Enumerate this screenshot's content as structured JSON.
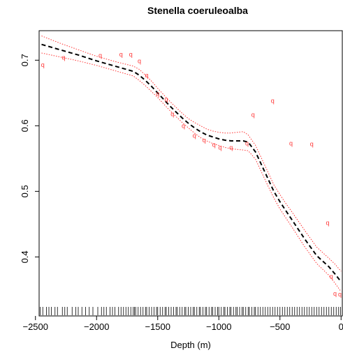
{
  "chart_data": {
    "type": "line",
    "title": "Stenella coeruleoalba",
    "xlabel": "Depth (m)",
    "ylabel": "",
    "xlim": [
      -2470,
      10
    ],
    "ylim": [
      0.31,
      0.745
    ],
    "x_ticks": [
      -2500,
      -2000,
      -1500,
      -1000,
      -500,
      0
    ],
    "x_tick_labels": [
      "−2500",
      "−2000",
      "−1500",
      "−1000",
      "−500",
      "0"
    ],
    "y_ticks": [
      0.4,
      0.5,
      0.6,
      0.7
    ],
    "y_tick_labels": [
      "0.4",
      "0.5",
      "0.6",
      "0.7"
    ],
    "grid": false,
    "legend": "none",
    "point_glyph": "q",
    "colors": {
      "fit": "#000000",
      "band": "#ff3333",
      "points": "#ff3333",
      "rug": "#000000",
      "axes": "#000000"
    },
    "series": [
      {
        "role": "fit",
        "style": "dashed",
        "x": [
          -2450,
          -2300,
          -2150,
          -2000,
          -1850,
          -1700,
          -1650,
          -1600,
          -1550,
          -1500,
          -1450,
          -1400,
          -1350,
          -1300,
          -1250,
          -1200,
          -1150,
          -1100,
          -1050,
          -1000,
          -950,
          -900,
          -850,
          -800,
          -760,
          -700,
          -650,
          -600,
          -550,
          -500,
          -450,
          -400,
          -300,
          -200,
          -100,
          -50,
          0
        ],
        "y": [
          0.724,
          0.716,
          0.708,
          0.699,
          0.691,
          0.683,
          0.677,
          0.669,
          0.66,
          0.65,
          0.64,
          0.63,
          0.621,
          0.612,
          0.604,
          0.597,
          0.591,
          0.586,
          0.583,
          0.58,
          0.578,
          0.577,
          0.577,
          0.577,
          0.575,
          0.56,
          0.54,
          0.52,
          0.5,
          0.484,
          0.47,
          0.456,
          0.428,
          0.402,
          0.385,
          0.374,
          0.362
        ]
      },
      {
        "role": "upper-band",
        "style": "dotted",
        "x": [
          -2450,
          -2300,
          -2150,
          -2000,
          -1850,
          -1700,
          -1650,
          -1600,
          -1550,
          -1500,
          -1450,
          -1400,
          -1350,
          -1300,
          -1250,
          -1200,
          -1150,
          -1100,
          -1050,
          -1000,
          -950,
          -900,
          -850,
          -800,
          -760,
          -700,
          -650,
          -600,
          -550,
          -500,
          -450,
          -400,
          -300,
          -200,
          -100,
          -50,
          0
        ],
        "y": [
          0.737,
          0.726,
          0.716,
          0.706,
          0.698,
          0.691,
          0.686,
          0.677,
          0.668,
          0.657,
          0.647,
          0.637,
          0.628,
          0.619,
          0.611,
          0.605,
          0.6,
          0.595,
          0.592,
          0.59,
          0.589,
          0.589,
          0.59,
          0.591,
          0.586,
          0.57,
          0.55,
          0.53,
          0.51,
          0.495,
          0.481,
          0.468,
          0.441,
          0.415,
          0.398,
          0.389,
          0.378
        ]
      },
      {
        "role": "lower-band",
        "style": "dotted",
        "x": [
          -2450,
          -2300,
          -2150,
          -2000,
          -1850,
          -1700,
          -1650,
          -1600,
          -1550,
          -1500,
          -1450,
          -1400,
          -1350,
          -1300,
          -1250,
          -1200,
          -1150,
          -1100,
          -1050,
          -1000,
          -950,
          -900,
          -850,
          -800,
          -760,
          -700,
          -650,
          -600,
          -550,
          -500,
          -450,
          -400,
          -300,
          -200,
          -100,
          -50,
          0
        ],
        "y": [
          0.711,
          0.705,
          0.699,
          0.692,
          0.684,
          0.676,
          0.669,
          0.661,
          0.652,
          0.643,
          0.633,
          0.623,
          0.614,
          0.605,
          0.597,
          0.589,
          0.582,
          0.577,
          0.573,
          0.57,
          0.567,
          0.565,
          0.564,
          0.563,
          0.562,
          0.549,
          0.529,
          0.509,
          0.49,
          0.473,
          0.459,
          0.445,
          0.416,
          0.39,
          0.372,
          0.36,
          0.347
        ]
      }
    ],
    "points": {
      "x": [
        -2440,
        -2270,
        -1970,
        -1800,
        -1720,
        -1650,
        -1590,
        -1500,
        -1430,
        -1380,
        -1290,
        -1200,
        -1120,
        -1040,
        -990,
        -900,
        -770,
        -720,
        -560,
        -410,
        -240,
        -110,
        -80,
        -50,
        -10
      ],
      "y": [
        0.693,
        0.704,
        0.707,
        0.709,
        0.709,
        0.699,
        0.677,
        0.649,
        0.64,
        0.618,
        0.6,
        0.585,
        0.578,
        0.571,
        0.567,
        0.567,
        0.573,
        0.617,
        0.638,
        0.573,
        0.572,
        0.452,
        0.37,
        0.344,
        0.343
      ]
    },
    "rug_x": [
      -2460,
      -2440,
      -2410,
      -2390,
      -2370,
      -2340,
      -2320,
      -2280,
      -2260,
      -2240,
      -2200,
      -2170,
      -2150,
      -2120,
      -2090,
      -2060,
      -2030,
      -1990,
      -1960,
      -1940,
      -1920,
      -1890,
      -1870,
      -1850,
      -1820,
      -1800,
      -1780,
      -1760,
      -1740,
      -1720,
      -1700,
      -1690,
      -1680,
      -1660,
      -1640,
      -1620,
      -1600,
      -1590,
      -1570,
      -1550,
      -1530,
      -1510,
      -1500,
      -1480,
      -1460,
      -1440,
      -1430,
      -1410,
      -1390,
      -1370,
      -1350,
      -1340,
      -1320,
      -1300,
      -1280,
      -1270,
      -1250,
      -1230,
      -1210,
      -1200,
      -1180,
      -1160,
      -1150,
      -1130,
      -1110,
      -1100,
      -1080,
      -1060,
      -1050,
      -1030,
      -1010,
      -1000,
      -980,
      -960,
      -950,
      -930,
      -910,
      -900,
      -880,
      -860,
      -850,
      -830,
      -810,
      -800,
      -780,
      -760,
      -750,
      -730,
      -710,
      -700,
      -680,
      -660,
      -640,
      -620,
      -600,
      -580,
      -560,
      -540,
      -520,
      -500,
      -480,
      -460,
      -440,
      -420,
      -400,
      -380,
      -360,
      -340,
      -320,
      -300,
      -280,
      -260,
      -240,
      -220,
      -200,
      -180,
      -160,
      -140,
      -120,
      -100,
      -80,
      -60,
      -40,
      -20,
      -5
    ]
  }
}
